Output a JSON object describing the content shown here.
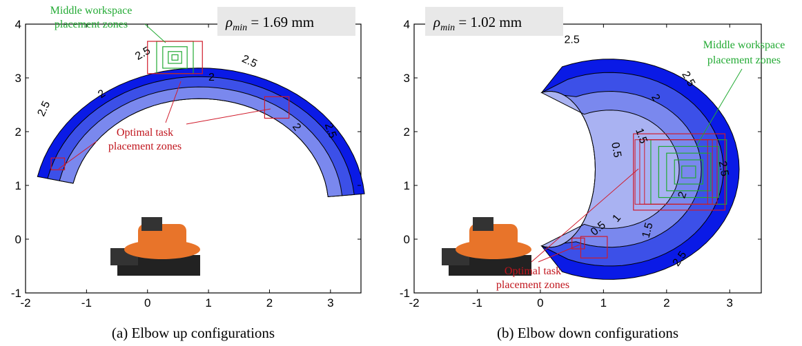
{
  "colors": {
    "band_outer": "#0a1ae6",
    "band_mid": "#3c50e8",
    "band_inner": "#7a88ee",
    "band_lightest": "#a9b2f2",
    "green": "#22aa33",
    "red": "#d01a2a",
    "robot": "#e8742a"
  },
  "chart_data": [
    {
      "type": "contour",
      "caption": "(a) Elbow up configurations",
      "rho_symbol": "ρ",
      "rho_sub": "min",
      "rho_value": "= 1.69 mm",
      "xlim": [
        -2,
        3.5
      ],
      "ylim": [
        -1,
        4
      ],
      "xticks": [
        "-2",
        "-1",
        "0",
        "1",
        "2",
        "3"
      ],
      "yticks": [
        "-1",
        "0",
        "1",
        "2",
        "3",
        "4"
      ],
      "contour_labels": [
        {
          "text": "2.5",
          "x": -0.05,
          "y": 3.4,
          "rot": -30
        },
        {
          "text": "2.5",
          "x": 1.65,
          "y": 3.25,
          "rot": 25
        },
        {
          "text": "2",
          "x": -0.72,
          "y": 2.65,
          "rot": -35
        },
        {
          "text": "2",
          "x": 1.05,
          "y": 2.95,
          "rot": 0
        },
        {
          "text": "2",
          "x": 2.4,
          "y": 2.05,
          "rot": 55
        },
        {
          "text": "2.5",
          "x": -1.65,
          "y": 2.4,
          "rot": -65
        },
        {
          "text": "2.5",
          "x": 2.95,
          "y": 2.0,
          "rot": 70
        }
      ],
      "green_label": [
        "Middle workspace",
        "placement zones"
      ],
      "red_label": [
        "Optimal task",
        "placement zones"
      ],
      "green_center": [
        0.45,
        3.38
      ],
      "red_boxes": [
        [
          0.45,
          3.38,
          0.9,
          0.6
        ],
        [
          2.12,
          2.45,
          0.4,
          0.4
        ],
        [
          -1.47,
          1.4,
          0.22,
          0.22
        ]
      ]
    },
    {
      "type": "contour",
      "caption": "(b) Elbow down configurations",
      "rho_symbol": "ρ",
      "rho_sub": "min",
      "rho_value": "= 1.02 mm",
      "xlim": [
        -2,
        3.5
      ],
      "ylim": [
        -1,
        4
      ],
      "xticks": [
        "-2",
        "-1",
        "0",
        "1",
        "2",
        "3"
      ],
      "yticks": [
        "-1",
        "0",
        "1",
        "2",
        "3",
        "4"
      ],
      "contour_labels": [
        {
          "text": "2.5",
          "x": 0.5,
          "y": 3.65,
          "rot": 0
        },
        {
          "text": "2.5",
          "x": 2.3,
          "y": 2.95,
          "rot": 60
        },
        {
          "text": "2",
          "x": 1.78,
          "y": 2.6,
          "rot": 60
        },
        {
          "text": "1.5",
          "x": 1.55,
          "y": 1.9,
          "rot": 70
        },
        {
          "text": "0.5",
          "x": 1.15,
          "y": 1.65,
          "rot": 80
        },
        {
          "text": "2.5",
          "x": 2.85,
          "y": 1.3,
          "rot": 80
        },
        {
          "text": "2",
          "x": 2.3,
          "y": 0.8,
          "rot": -70
        },
        {
          "text": "1",
          "x": 1.25,
          "y": 0.35,
          "rot": -50
        },
        {
          "text": "0.5",
          "x": 0.95,
          "y": 0.15,
          "rot": -40
        },
        {
          "text": "1.5",
          "x": 1.75,
          "y": 0.15,
          "rot": -75
        },
        {
          "text": "2.5",
          "x": 2.25,
          "y": -0.4,
          "rot": -55
        }
      ],
      "green_label": [
        "Middle workspace",
        "placement zones"
      ],
      "red_label": [
        "Optimal task",
        "placement zones"
      ],
      "green_center": [
        2.35,
        1.25
      ],
      "red_boxes": [
        [
          2.2,
          1.25,
          1.45,
          1.42
        ],
        [
          0.85,
          -0.15,
          0.42,
          0.4
        ],
        [
          0.6,
          -0.08,
          0.2,
          0.2
        ]
      ]
    }
  ]
}
